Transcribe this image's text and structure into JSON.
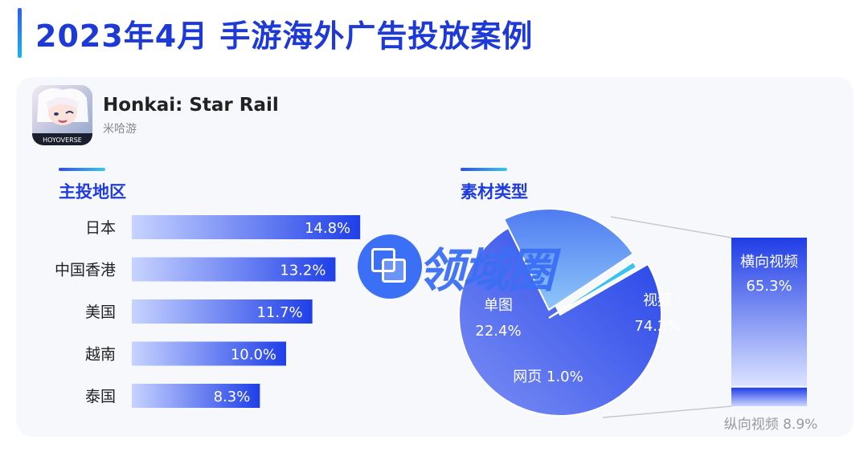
{
  "page": {
    "title": "2023年4月  手游海外广告投放案例"
  },
  "app": {
    "name": "Honkai: Star Rail",
    "developer": "米哈游",
    "icon_brand_text": "HOYOVERSE"
  },
  "sections": {
    "region_title": "主投地区",
    "material_title": "素材类型"
  },
  "watermark": {
    "text": "领域圈"
  },
  "colors": {
    "title": "#1e3ad6",
    "bar_start": "#c7d3ff",
    "bar_end": "#1f3fe8",
    "pie_main": "#3f63ef",
    "pie_single": "#5aa3f4",
    "pie_web": "#39c3ee"
  },
  "chart_data": [
    {
      "type": "bar",
      "orientation": "horizontal",
      "title": "主投地区",
      "categories": [
        "日本",
        "中国香港",
        "美国",
        "越南",
        "泰国"
      ],
      "values": [
        14.8,
        13.2,
        11.7,
        10.0,
        8.3
      ],
      "value_labels": [
        "14.8%",
        "13.2%",
        "11.7%",
        "10.0%",
        "8.3%"
      ],
      "unit": "%"
    },
    {
      "type": "pie",
      "title": "素材类型",
      "slices": [
        {
          "name": "视频",
          "value": 74.2,
          "label": "74.2%"
        },
        {
          "name": "单图",
          "value": 22.4,
          "label": "22.4%"
        },
        {
          "name": "网页",
          "value": 1.0,
          "label": "1.0%"
        }
      ],
      "breakdown": {
        "of": "视频",
        "type": "stacked-bar",
        "segments": [
          {
            "name": "横向视频",
            "value": 65.3,
            "label": "65.3%"
          },
          {
            "name": "纵向视频",
            "value": 8.9,
            "label": "8.9%"
          }
        ]
      }
    }
  ]
}
